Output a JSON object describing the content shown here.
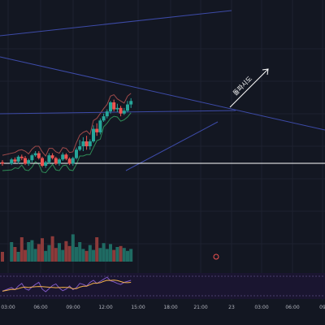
{
  "chart_data": {
    "type": "candlestick",
    "x_ticks": [
      "03:00",
      "06:00",
      "09:00",
      "12:00",
      "15:00",
      "18:00",
      "21:00",
      "23",
      "03:00",
      "06:00",
      "09"
    ],
    "annotation": "돌파시도",
    "grid": true,
    "up_color": "#26a69a",
    "down_color": "#ef5350",
    "band_upper_color": "#9e4a4a",
    "band_lower_color": "#2e8b57",
    "trendline_color": "#3d4ba8",
    "horizontal_line_color": "#ffffff",
    "rsi_color": "#7e57c2",
    "rsi_signal_color": "#f2b04c",
    "candles": [
      [
        -1,
        152,
        150,
        155,
        147
      ],
      [
        0.6,
        150,
        156,
        158,
        148
      ],
      [
        1.2,
        156,
        153,
        159,
        151
      ],
      [
        1.8,
        153,
        160,
        162,
        150
      ],
      [
        2.4,
        160,
        158,
        163,
        155
      ],
      [
        3,
        158,
        150,
        161,
        148
      ],
      [
        3.6,
        150,
        155,
        157,
        147
      ],
      [
        4.2,
        155,
        162,
        164,
        152
      ],
      [
        4.8,
        162,
        165,
        168,
        160
      ],
      [
        5.4,
        165,
        158,
        168,
        156
      ],
      [
        6,
        158,
        147,
        160,
        145
      ],
      [
        6.6,
        147,
        152,
        154,
        144
      ],
      [
        7.2,
        152,
        162,
        165,
        150
      ],
      [
        7.8,
        162,
        158,
        165,
        156
      ],
      [
        8.4,
        158,
        150,
        160,
        148
      ],
      [
        9,
        150,
        156,
        158,
        147
      ],
      [
        9.6,
        156,
        163,
        166,
        154
      ],
      [
        10.2,
        163,
        157,
        165,
        155
      ],
      [
        10.8,
        157,
        150,
        159,
        148
      ],
      [
        11.4,
        150,
        158,
        160,
        147
      ],
      [
        12,
        158,
        170,
        173,
        156
      ],
      [
        12.6,
        170,
        175,
        184,
        168
      ],
      [
        13.2,
        175,
        182,
        188,
        168
      ],
      [
        13.8,
        182,
        175,
        190,
        170
      ],
      [
        14.4,
        175,
        182,
        185,
        170
      ],
      [
        15,
        182,
        200,
        205,
        180
      ],
      [
        15.6,
        200,
        195,
        208,
        190
      ],
      [
        16.2,
        195,
        212,
        215,
        192
      ],
      [
        16.8,
        212,
        218,
        222,
        210
      ],
      [
        17.4,
        218,
        225,
        228,
        215
      ],
      [
        18,
        225,
        238,
        240,
        222
      ],
      [
        18.6,
        238,
        228,
        242,
        225
      ],
      [
        19.2,
        228,
        230,
        236,
        224
      ],
      [
        19.8,
        230,
        222,
        233,
        218
      ],
      [
        20.4,
        222,
        226,
        230,
        220
      ],
      [
        21,
        226,
        235,
        240,
        224
      ],
      [
        21.6,
        235,
        240,
        244,
        230
      ]
    ],
    "volume_heights": [
      1,
      2,
      1.5,
      1,
      2.5,
      1.2,
      2,
      2.2,
      1.3,
      1.8,
      2.4,
      1.1,
      1.7,
      2.6,
      1.4,
      1.9,
      1.2,
      2.1,
      1.6,
      2.8,
      1.5,
      2,
      1.3,
      1.1,
      1.7,
      1.2,
      2.5,
      1.4,
      1.9,
      1.3,
      1.8,
      1.2,
      1.5,
      1.6,
      1.4,
      1.1,
      1.3
    ],
    "rsi": [
      45,
      52,
      48,
      55,
      60,
      50,
      47,
      53,
      58,
      62,
      49,
      44,
      50,
      56,
      59,
      51,
      46,
      49,
      55,
      48,
      52,
      60,
      58,
      55,
      62,
      66,
      60,
      64,
      68,
      72,
      65,
      63,
      60,
      58,
      62,
      64,
      66
    ]
  }
}
